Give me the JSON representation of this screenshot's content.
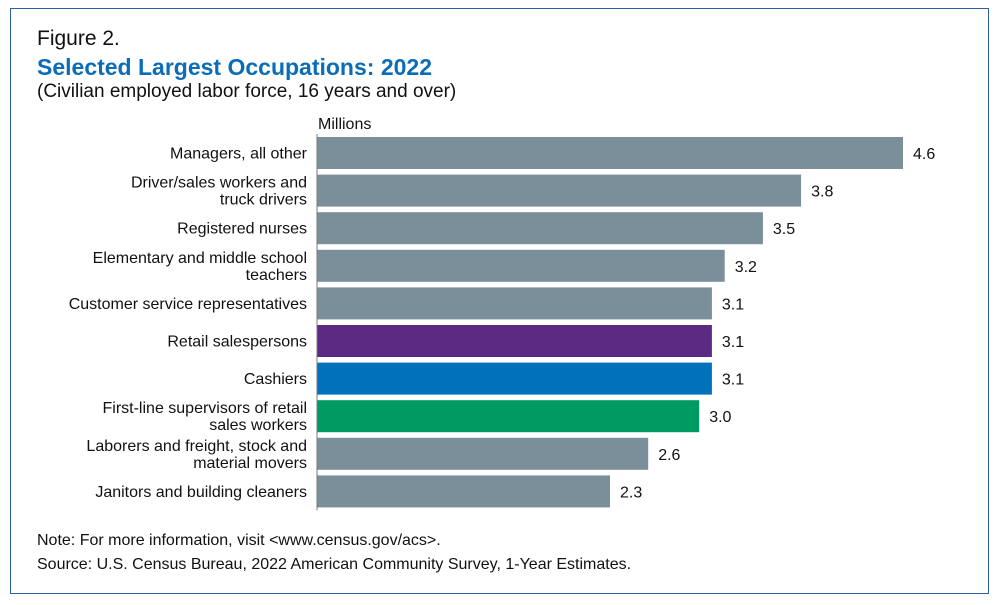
{
  "figure": {
    "label": "Figure 2.",
    "title": "Selected Largest Occupations: 2022",
    "subtitle": "(Civilian employed labor force, 16 years and over)",
    "units": "Millions",
    "note": "Note: For more information, visit <www.census.gov/acs>.",
    "source": "Source: U.S. Census Bureau, 2022  American Community Survey, 1-Year Estimates."
  },
  "colors": {
    "default_bar": "#7a8f99",
    "highlight_retail_salespersons": "#5b2a82",
    "highlight_cashiers": "#0072bc",
    "highlight_supervisors": "#009a63",
    "title": "#0b6db7",
    "frame": "#2f5fa0"
  },
  "chart_data": {
    "type": "bar",
    "orientation": "horizontal",
    "title": "Selected Largest Occupations: 2022",
    "subtitle": "(Civilian employed labor force, 16 years and over)",
    "xlabel": "Millions",
    "ylabel": "",
    "xlim": [
      0,
      4.6
    ],
    "grid": false,
    "categories": [
      [
        "Managers, all other"
      ],
      [
        "Driver/sales workers and",
        "truck drivers"
      ],
      [
        "Registered nurses"
      ],
      [
        "Elementary and middle school",
        "teachers"
      ],
      [
        "Customer service representatives"
      ],
      [
        "Retail salespersons"
      ],
      [
        "Cashiers"
      ],
      [
        "First-line supervisors of retail",
        "sales workers"
      ],
      [
        "Laborers and freight, stock and",
        "material movers"
      ],
      [
        "Janitors and building cleaners"
      ]
    ],
    "values": [
      4.6,
      3.8,
      3.5,
      3.2,
      3.1,
      3.1,
      3.1,
      3.0,
      2.6,
      2.3
    ],
    "value_labels": [
      "4.6",
      "3.8",
      "3.5",
      "3.2",
      "3.1",
      "3.1",
      "3.1",
      "3.0",
      "2.6",
      "2.3"
    ],
    "bar_colors": [
      "#7a8f99",
      "#7a8f99",
      "#7a8f99",
      "#7a8f99",
      "#7a8f99",
      "#5b2a82",
      "#0072bc",
      "#009a63",
      "#7a8f99",
      "#7a8f99"
    ]
  }
}
